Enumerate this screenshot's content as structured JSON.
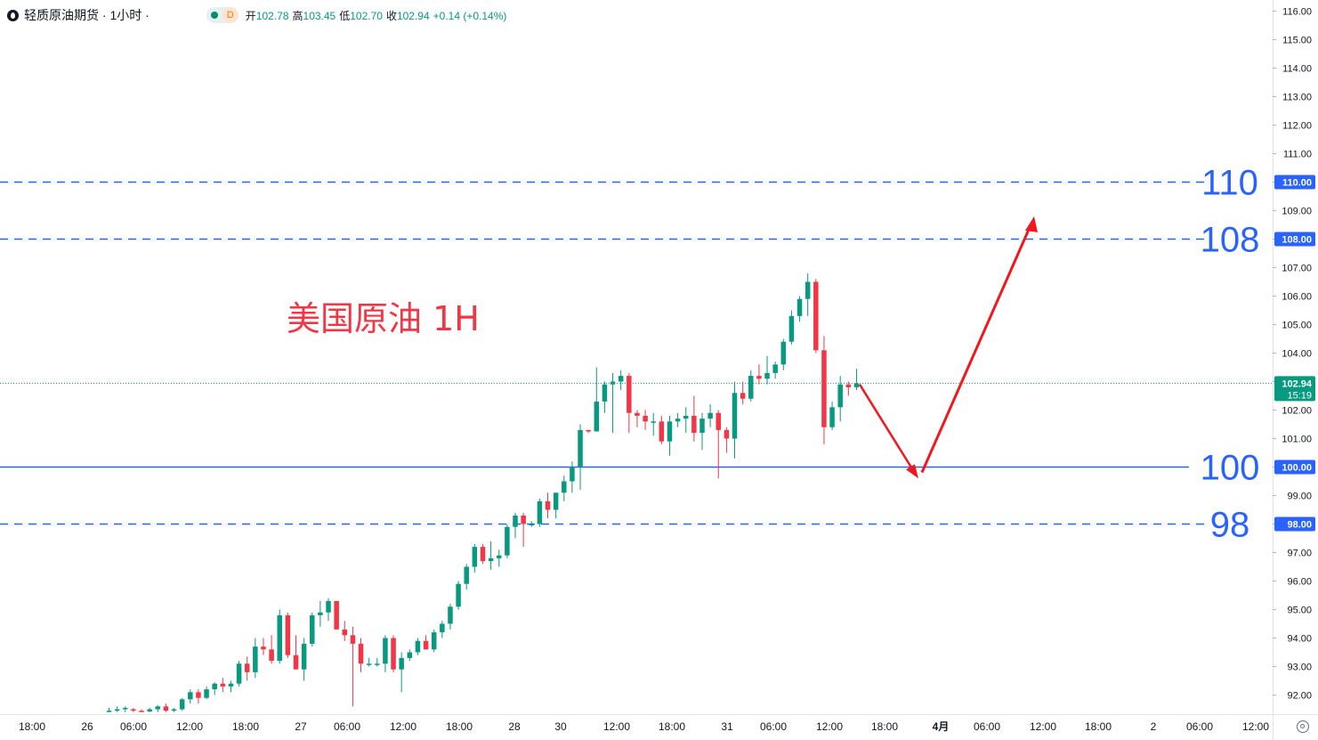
{
  "legend": {
    "title": "轻质原油期货 · 1小时 ·",
    "delay_badge": "D",
    "open_label": "开",
    "open": "102.78",
    "high_label": "高",
    "high": "103.45",
    "low_label": "低",
    "low": "102.70",
    "close_label": "收",
    "close": "102.94",
    "change": "+0.14 (+0.14%)"
  },
  "annotation": "美国原油 1H",
  "colors": {
    "up": "#089981",
    "down": "#f23645",
    "line": "#2962ff",
    "arrow": "#f0171f",
    "label_text": "#2962ff"
  },
  "icons": [
    "settings-icon"
  ],
  "chart_data": {
    "type": "candlestick",
    "title": "轻质原油期货 · 1小时",
    "ylim": [
      91.4,
      116.3
    ],
    "y_ticks": [
      "116.00",
      "115.00",
      "114.00",
      "113.00",
      "112.00",
      "111.00",
      "110.00",
      "109.00",
      "108.00",
      "107.00",
      "106.00",
      "105.00",
      "104.00",
      "103.00",
      "102.00",
      "101.00",
      "100.00",
      "99.00",
      "98.00",
      "97.00",
      "96.00",
      "95.00",
      "94.00",
      "93.00",
      "92.00"
    ],
    "x_ticks": [
      "18:00",
      "26",
      "06:00",
      "12:00",
      "18:00",
      "27",
      "06:00",
      "12:00",
      "18:00",
      "28",
      "30",
      "12:00",
      "18:00",
      "31",
      "06:00",
      "12:00",
      "18:00",
      "4月",
      "06:00",
      "12:00",
      "18:00",
      "2",
      "06:00",
      "12:00"
    ],
    "current_price": {
      "price": "102.94",
      "countdown": "15:19",
      "value": 102.94
    },
    "levels": [
      {
        "value": 110,
        "style": "dashed",
        "label": "110",
        "axis_label": "110.00"
      },
      {
        "value": 108,
        "style": "dashed",
        "label": "108",
        "axis_label": "108.00"
      },
      {
        "value": 100,
        "style": "solid",
        "label": "100",
        "axis_label": "100.00"
      },
      {
        "value": 98,
        "style": "dashed",
        "label": "98",
        "axis_label": "98.00"
      }
    ],
    "arrows": [
      {
        "from": 102.9,
        "to": 99.6,
        "direction": "down"
      },
      {
        "from": 100.0,
        "to": 108.8,
        "direction": "up"
      }
    ],
    "candles": [
      {
        "o": 91.45,
        "h": 91.55,
        "l": 91.4,
        "c": 91.45
      },
      {
        "o": 91.45,
        "h": 91.6,
        "l": 91.4,
        "c": 91.5
      },
      {
        "o": 91.5,
        "h": 91.6,
        "l": 91.4,
        "c": 91.55
      },
      {
        "o": 91.5,
        "h": 91.55,
        "l": 91.4,
        "c": 91.45
      },
      {
        "o": 91.45,
        "h": 91.5,
        "l": 91.4,
        "c": 91.42
      },
      {
        "o": 91.42,
        "h": 91.55,
        "l": 91.4,
        "c": 91.5
      },
      {
        "o": 91.5,
        "h": 91.65,
        "l": 91.4,
        "c": 91.6
      },
      {
        "o": 91.6,
        "h": 91.7,
        "l": 91.4,
        "c": 91.45
      },
      {
        "o": 91.45,
        "h": 91.55,
        "l": 91.4,
        "c": 91.5
      },
      {
        "o": 91.5,
        "h": 91.9,
        "l": 91.45,
        "c": 91.85
      },
      {
        "o": 91.85,
        "h": 92.2,
        "l": 91.7,
        "c": 92.1
      },
      {
        "o": 92.1,
        "h": 92.2,
        "l": 91.7,
        "c": 91.9
      },
      {
        "o": 91.9,
        "h": 92.3,
        "l": 91.85,
        "c": 92.2
      },
      {
        "o": 92.2,
        "h": 92.45,
        "l": 92.0,
        "c": 92.4
      },
      {
        "o": 92.4,
        "h": 92.6,
        "l": 92.1,
        "c": 92.3
      },
      {
        "o": 92.3,
        "h": 92.5,
        "l": 92.1,
        "c": 92.4
      },
      {
        "o": 92.4,
        "h": 93.2,
        "l": 92.3,
        "c": 93.1
      },
      {
        "o": 93.1,
        "h": 93.35,
        "l": 92.5,
        "c": 92.8
      },
      {
        "o": 92.8,
        "h": 94.0,
        "l": 92.6,
        "c": 93.7
      },
      {
        "o": 93.7,
        "h": 94.0,
        "l": 93.4,
        "c": 93.6
      },
      {
        "o": 93.6,
        "h": 94.1,
        "l": 93.1,
        "c": 93.2
      },
      {
        "o": 93.2,
        "h": 95.0,
        "l": 93.1,
        "c": 94.8
      },
      {
        "o": 94.8,
        "h": 94.9,
        "l": 93.3,
        "c": 93.4
      },
      {
        "o": 93.4,
        "h": 94.1,
        "l": 92.9,
        "c": 92.9
      },
      {
        "o": 92.9,
        "h": 94.0,
        "l": 92.5,
        "c": 93.8
      },
      {
        "o": 93.8,
        "h": 94.9,
        "l": 93.7,
        "c": 94.8
      },
      {
        "o": 94.8,
        "h": 95.3,
        "l": 94.4,
        "c": 94.9
      },
      {
        "o": 94.9,
        "h": 95.4,
        "l": 94.6,
        "c": 95.3
      },
      {
        "o": 95.3,
        "h": 95.3,
        "l": 94.3,
        "c": 94.3
      },
      {
        "o": 94.3,
        "h": 94.6,
        "l": 93.9,
        "c": 94.1
      },
      {
        "o": 94.1,
        "h": 94.4,
        "l": 91.6,
        "c": 93.8
      },
      {
        "o": 93.8,
        "h": 94.0,
        "l": 92.8,
        "c": 93.1
      },
      {
        "o": 93.1,
        "h": 93.3,
        "l": 93.0,
        "c": 93.1
      },
      {
        "o": 93.1,
        "h": 93.3,
        "l": 93.0,
        "c": 93.1
      },
      {
        "o": 93.1,
        "h": 94.1,
        "l": 92.8,
        "c": 94.0
      },
      {
        "o": 94.0,
        "h": 94.1,
        "l": 92.8,
        "c": 92.9
      },
      {
        "o": 92.9,
        "h": 93.5,
        "l": 92.1,
        "c": 93.3
      },
      {
        "o": 93.3,
        "h": 93.6,
        "l": 93.2,
        "c": 93.5
      },
      {
        "o": 93.5,
        "h": 94.0,
        "l": 93.4,
        "c": 93.9
      },
      {
        "o": 93.9,
        "h": 94.1,
        "l": 93.6,
        "c": 93.6
      },
      {
        "o": 93.6,
        "h": 94.3,
        "l": 93.5,
        "c": 94.2
      },
      {
        "o": 94.2,
        "h": 94.6,
        "l": 94.0,
        "c": 94.5
      },
      {
        "o": 94.5,
        "h": 95.2,
        "l": 94.3,
        "c": 95.1
      },
      {
        "o": 95.1,
        "h": 96.0,
        "l": 95.0,
        "c": 95.9
      },
      {
        "o": 95.9,
        "h": 96.6,
        "l": 95.7,
        "c": 96.5
      },
      {
        "o": 96.5,
        "h": 97.3,
        "l": 96.3,
        "c": 97.2
      },
      {
        "o": 97.2,
        "h": 97.3,
        "l": 96.6,
        "c": 96.7
      },
      {
        "o": 96.7,
        "h": 97.4,
        "l": 96.4,
        "c": 96.8
      },
      {
        "o": 96.8,
        "h": 97.1,
        "l": 96.5,
        "c": 96.9
      },
      {
        "o": 96.9,
        "h": 98.0,
        "l": 96.8,
        "c": 97.9
      },
      {
        "o": 97.9,
        "h": 98.4,
        "l": 97.5,
        "c": 98.3
      },
      {
        "o": 98.3,
        "h": 98.4,
        "l": 97.2,
        "c": 98.0
      },
      {
        "o": 98.0,
        "h": 98.1,
        "l": 97.9,
        "c": 98.0
      },
      {
        "o": 98.0,
        "h": 98.9,
        "l": 97.9,
        "c": 98.8
      },
      {
        "o": 98.8,
        "h": 99.1,
        "l": 98.2,
        "c": 98.5
      },
      {
        "o": 98.5,
        "h": 99.1,
        "l": 98.2,
        "c": 99.1
      },
      {
        "o": 99.1,
        "h": 99.7,
        "l": 98.8,
        "c": 99.5
      },
      {
        "o": 99.5,
        "h": 100.2,
        "l": 99.1,
        "c": 100.0
      },
      {
        "o": 100.0,
        "h": 101.5,
        "l": 99.2,
        "c": 101.3
      },
      {
        "o": 101.3,
        "h": 101.3,
        "l": 101.2,
        "c": 101.25
      },
      {
        "o": 101.25,
        "h": 103.5,
        "l": 101.3,
        "c": 102.3
      },
      {
        "o": 102.3,
        "h": 103.0,
        "l": 101.9,
        "c": 102.9
      },
      {
        "o": 102.9,
        "h": 103.3,
        "l": 101.2,
        "c": 103.0
      },
      {
        "o": 103.0,
        "h": 103.4,
        "l": 102.7,
        "c": 103.2
      },
      {
        "o": 103.2,
        "h": 103.3,
        "l": 101.2,
        "c": 101.9
      },
      {
        "o": 101.9,
        "h": 102.0,
        "l": 101.4,
        "c": 101.8
      },
      {
        "o": 101.8,
        "h": 102.0,
        "l": 101.3,
        "c": 101.6
      },
      {
        "o": 101.6,
        "h": 101.9,
        "l": 101.1,
        "c": 101.6
      },
      {
        "o": 101.6,
        "h": 101.8,
        "l": 100.8,
        "c": 100.9
      },
      {
        "o": 100.9,
        "h": 101.8,
        "l": 100.4,
        "c": 101.6
      },
      {
        "o": 101.6,
        "h": 101.9,
        "l": 101.4,
        "c": 101.7
      },
      {
        "o": 101.7,
        "h": 102.1,
        "l": 101.2,
        "c": 101.8
      },
      {
        "o": 101.8,
        "h": 102.5,
        "l": 100.9,
        "c": 101.2
      },
      {
        "o": 101.2,
        "h": 101.9,
        "l": 100.6,
        "c": 101.7
      },
      {
        "o": 101.7,
        "h": 102.2,
        "l": 101.4,
        "c": 101.9
      },
      {
        "o": 101.9,
        "h": 102.0,
        "l": 99.6,
        "c": 101.3
      },
      {
        "o": 101.3,
        "h": 101.4,
        "l": 100.5,
        "c": 101.0
      },
      {
        "o": 101.0,
        "h": 103.0,
        "l": 100.3,
        "c": 102.6
      },
      {
        "o": 102.6,
        "h": 103.0,
        "l": 102.2,
        "c": 102.4
      },
      {
        "o": 102.4,
        "h": 103.4,
        "l": 102.3,
        "c": 103.2
      },
      {
        "o": 103.2,
        "h": 103.6,
        "l": 102.9,
        "c": 103.1
      },
      {
        "o": 103.1,
        "h": 103.9,
        "l": 102.9,
        "c": 103.3
      },
      {
        "o": 103.3,
        "h": 103.7,
        "l": 103.1,
        "c": 103.6
      },
      {
        "o": 103.6,
        "h": 104.5,
        "l": 103.4,
        "c": 104.4
      },
      {
        "o": 104.4,
        "h": 105.5,
        "l": 104.3,
        "c": 105.3
      },
      {
        "o": 105.3,
        "h": 106.0,
        "l": 105.1,
        "c": 105.9
      },
      {
        "o": 105.9,
        "h": 106.8,
        "l": 105.3,
        "c": 106.5
      },
      {
        "o": 106.5,
        "h": 106.6,
        "l": 104.0,
        "c": 104.1
      },
      {
        "o": 104.1,
        "h": 104.6,
        "l": 100.8,
        "c": 101.4
      },
      {
        "o": 101.4,
        "h": 102.3,
        "l": 101.3,
        "c": 102.1
      },
      {
        "o": 102.1,
        "h": 103.2,
        "l": 101.6,
        "c": 102.9
      },
      {
        "o": 102.9,
        "h": 103.0,
        "l": 102.5,
        "c": 102.8
      },
      {
        "o": 102.8,
        "h": 103.45,
        "l": 102.7,
        "c": 102.94
      }
    ]
  }
}
